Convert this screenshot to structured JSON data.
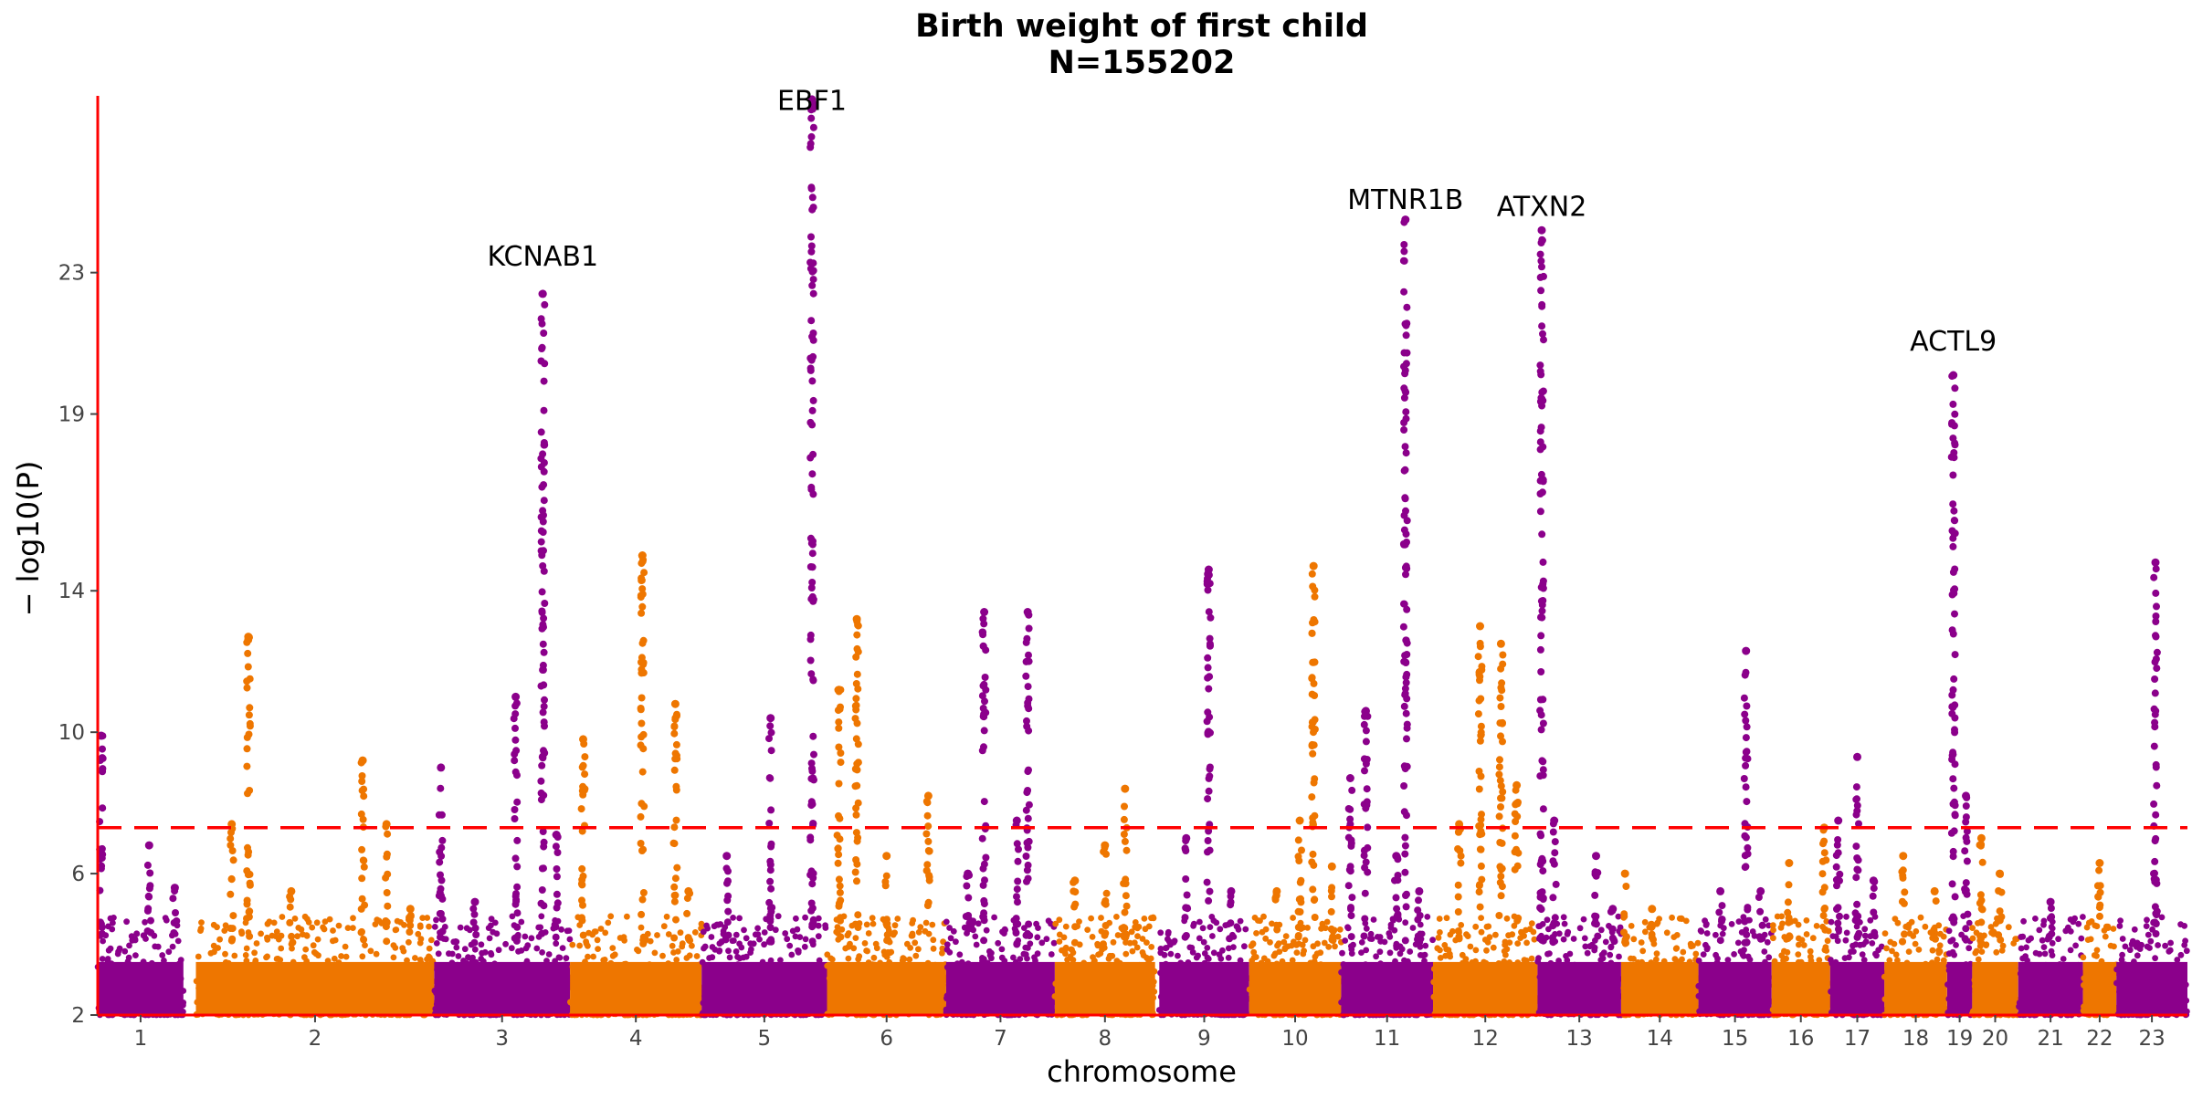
{
  "chart_data": {
    "type": "scatter",
    "subtype": "manhattan",
    "title": "Birth weight of first child",
    "subtitle": "N=155202",
    "xlabel": "chromosome",
    "ylabel": "− log10(P)",
    "ylim": [
      2,
      28
    ],
    "yticks": [
      2,
      6,
      10,
      14,
      19,
      23
    ],
    "grid": false,
    "legend": "none",
    "significance_threshold": 7.3,
    "colors": {
      "odd": "#8b008b",
      "even": "#ee7600",
      "threshold": "#ff0000",
      "axis": "#ff0000",
      "text": "#000000",
      "tick_text": "#444444"
    },
    "chromosomes": [
      {
        "label": "1",
        "span": [
          0.0,
          0.0434
        ],
        "peaks": [
          {
            "pos": 0.04,
            "y": 9.9
          },
          {
            "pos": 0.6,
            "y": 6.8
          },
          {
            "pos": 0.9,
            "y": 5.6
          }
        ]
      },
      {
        "label": "2",
        "span": [
          0.0485,
          0.1497
        ],
        "peaks": [
          {
            "pos": 0.15,
            "y": 7.4
          },
          {
            "pos": 0.22,
            "y": 12.7
          },
          {
            "pos": 0.4,
            "y": 5.5
          },
          {
            "pos": 0.7,
            "y": 9.2
          },
          {
            "pos": 0.8,
            "y": 7.4
          },
          {
            "pos": 0.9,
            "y": 5.0
          }
        ]
      },
      {
        "label": "3",
        "span": [
          0.1497,
          0.2254
        ],
        "peaks": [
          {
            "pos": 0.05,
            "y": 9.0
          },
          {
            "pos": 0.3,
            "y": 5.2
          },
          {
            "pos": 0.6,
            "y": 11.0
          },
          {
            "pos": 0.8,
            "y": 22.4
          },
          {
            "pos": 0.9,
            "y": 7.1
          }
        ]
      },
      {
        "label": "4",
        "span": [
          0.2254,
          0.2976
        ],
        "peaks": [
          {
            "pos": 0.1,
            "y": 9.8
          },
          {
            "pos": 0.55,
            "y": 15.0
          },
          {
            "pos": 0.8,
            "y": 10.8
          },
          {
            "pos": 0.9,
            "y": 5.5
          }
        ]
      },
      {
        "label": "5",
        "span": [
          0.2976,
          0.367
        ],
        "peaks": [
          {
            "pos": 0.2,
            "y": 6.5
          },
          {
            "pos": 0.55,
            "y": 10.4
          },
          {
            "pos": 0.88,
            "y": 27.9
          }
        ]
      },
      {
        "label": "6",
        "span": [
          0.367,
          0.4318
        ],
        "peaks": [
          {
            "pos": 0.1,
            "y": 11.2
          },
          {
            "pos": 0.25,
            "y": 13.2
          },
          {
            "pos": 0.5,
            "y": 6.5
          },
          {
            "pos": 0.85,
            "y": 8.2
          }
        ]
      },
      {
        "label": "7",
        "span": [
          0.4318,
          0.4927
        ],
        "peaks": [
          {
            "pos": 0.2,
            "y": 6.0
          },
          {
            "pos": 0.35,
            "y": 13.4
          },
          {
            "pos": 0.65,
            "y": 7.5
          },
          {
            "pos": 0.75,
            "y": 13.4
          }
        ]
      },
      {
        "label": "8",
        "span": [
          0.4927,
          0.5487
        ],
        "peaks": [
          {
            "pos": 0.2,
            "y": 5.8
          },
          {
            "pos": 0.5,
            "y": 6.8
          },
          {
            "pos": 0.7,
            "y": 8.4
          }
        ]
      },
      {
        "label": "9",
        "span": [
          0.5577,
          0.5993
        ],
        "peaks": [
          {
            "pos": 0.3,
            "y": 7.0
          },
          {
            "pos": 0.55,
            "y": 14.6
          },
          {
            "pos": 0.8,
            "y": 5.5
          }
        ]
      },
      {
        "label": "10",
        "span": [
          0.5993,
          0.651
        ],
        "peaks": [
          {
            "pos": 0.3,
            "y": 5.5
          },
          {
            "pos": 0.55,
            "y": 7.5
          },
          {
            "pos": 0.7,
            "y": 14.7
          },
          {
            "pos": 0.9,
            "y": 6.2
          }
        ]
      },
      {
        "label": "11",
        "span": [
          0.651,
          0.7014
        ],
        "peaks": [
          {
            "pos": 0.1,
            "y": 8.7
          },
          {
            "pos": 0.27,
            "y": 10.6
          },
          {
            "pos": 0.6,
            "y": 6.5
          },
          {
            "pos": 0.7,
            "y": 24.5
          },
          {
            "pos": 0.85,
            "y": 5.5
          }
        ]
      },
      {
        "label": "12",
        "span": [
          0.7014,
          0.7498
        ],
        "peaks": [
          {
            "pos": 0.25,
            "y": 7.4
          },
          {
            "pos": 0.45,
            "y": 13.0
          },
          {
            "pos": 0.65,
            "y": 12.5
          },
          {
            "pos": 0.8,
            "y": 8.5
          }
        ]
      },
      {
        "label": "13",
        "span": [
          0.7498,
          0.7873
        ],
        "peaks": [
          {
            "pos": 0.05,
            "y": 24.2
          },
          {
            "pos": 0.2,
            "y": 7.5
          },
          {
            "pos": 0.7,
            "y": 6.5
          },
          {
            "pos": 0.9,
            "y": 5.0
          }
        ]
      },
      {
        "label": "14",
        "span": [
          0.7873,
          0.8224
        ],
        "peaks": [
          {
            "pos": 0.05,
            "y": 6.0
          },
          {
            "pos": 0.4,
            "y": 5.0
          }
        ]
      },
      {
        "label": "15",
        "span": [
          0.8224,
          0.8548
        ],
        "peaks": [
          {
            "pos": 0.3,
            "y": 5.5
          },
          {
            "pos": 0.65,
            "y": 12.3
          },
          {
            "pos": 0.85,
            "y": 5.5
          }
        ]
      },
      {
        "label": "16",
        "span": [
          0.8548,
          0.8808
        ],
        "peaks": [
          {
            "pos": 0.3,
            "y": 6.3
          },
          {
            "pos": 0.9,
            "y": 7.3
          }
        ]
      },
      {
        "label": "17",
        "span": [
          0.8808,
          0.9078
        ],
        "peaks": [
          {
            "pos": 0.15,
            "y": 7.5
          },
          {
            "pos": 0.5,
            "y": 9.3
          },
          {
            "pos": 0.8,
            "y": 5.8
          }
        ]
      },
      {
        "label": "18",
        "span": [
          0.9078,
          0.9333
        ],
        "peaks": [
          {
            "pos": 0.3,
            "y": 6.5
          },
          {
            "pos": 0.8,
            "y": 5.5
          }
        ]
      },
      {
        "label": "19",
        "span": [
          0.9333,
          0.953
        ],
        "peaks": [
          {
            "pos": 0.25,
            "y": 20.1
          },
          {
            "pos": 0.75,
            "y": 8.2
          }
        ]
      },
      {
        "label": "20",
        "span": [
          0.953,
          0.9752
        ],
        "peaks": [
          {
            "pos": 0.2,
            "y": 7.0
          },
          {
            "pos": 0.6,
            "y": 6.0
          }
        ]
      },
      {
        "label": "21",
        "span": [
          0.9752,
          0.9889
        ],
        "peaks": [
          {
            "pos": 0.5,
            "y": 5.2
          }
        ]
      },
      {
        "label": "22",
        "span": [
          0.9889,
          1.0
        ],
        "peaks": [
          {
            "pos": 0.5,
            "y": 6.3
          }
        ]
      },
      {
        "label": "23",
        "span": [
          1.0,
          1.0
        ],
        "peaks": [
          {
            "pos": 0.55,
            "y": 14.8
          }
        ]
      }
    ],
    "gene_labels": [
      {
        "text": "KCNAB1",
        "chrom": "3",
        "pos": 0.8,
        "y": 23.2
      },
      {
        "text": "EBF1",
        "chrom": "5",
        "pos": 0.88,
        "y": 27.6
      },
      {
        "text": "MTNR1B",
        "chrom": "11",
        "pos": 0.7,
        "y": 24.8
      },
      {
        "text": "ATXN2",
        "chrom": "13",
        "pos": 0.05,
        "y": 24.6
      },
      {
        "text": "ACTL9",
        "chrom": "19",
        "pos": 0.25,
        "y": 20.8
      }
    ]
  }
}
